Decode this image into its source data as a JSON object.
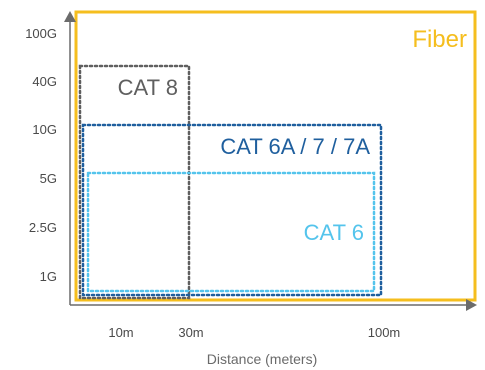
{
  "chart_data": {
    "type": "area",
    "title": "",
    "xlabel": "Distance (meters)",
    "ylabel": "",
    "x_ticks": [
      "10m",
      "30m",
      "100m"
    ],
    "y_ticks": [
      "1G",
      "2.5G",
      "5G",
      "10G",
      "40G",
      "100G"
    ],
    "grid": false,
    "regions": [
      {
        "name": "Fiber",
        "max_distance": "beyond 100m",
        "max_speed": "100G",
        "color": "#F5BE1E",
        "line_style": "solid"
      },
      {
        "name": "CAT 8",
        "max_distance": "30m",
        "max_speed": "40G",
        "color": "#5F5F5F",
        "line_style": "dotted"
      },
      {
        "name": "CAT 6A / 7 / 7A",
        "max_distance": "100m",
        "max_speed": "10G",
        "color": "#1F5F9E",
        "line_style": "dotted"
      },
      {
        "name": "CAT 6",
        "max_distance": "100m",
        "max_speed": "5G",
        "color": "#54C4EC",
        "line_style": "dotted"
      }
    ]
  }
}
